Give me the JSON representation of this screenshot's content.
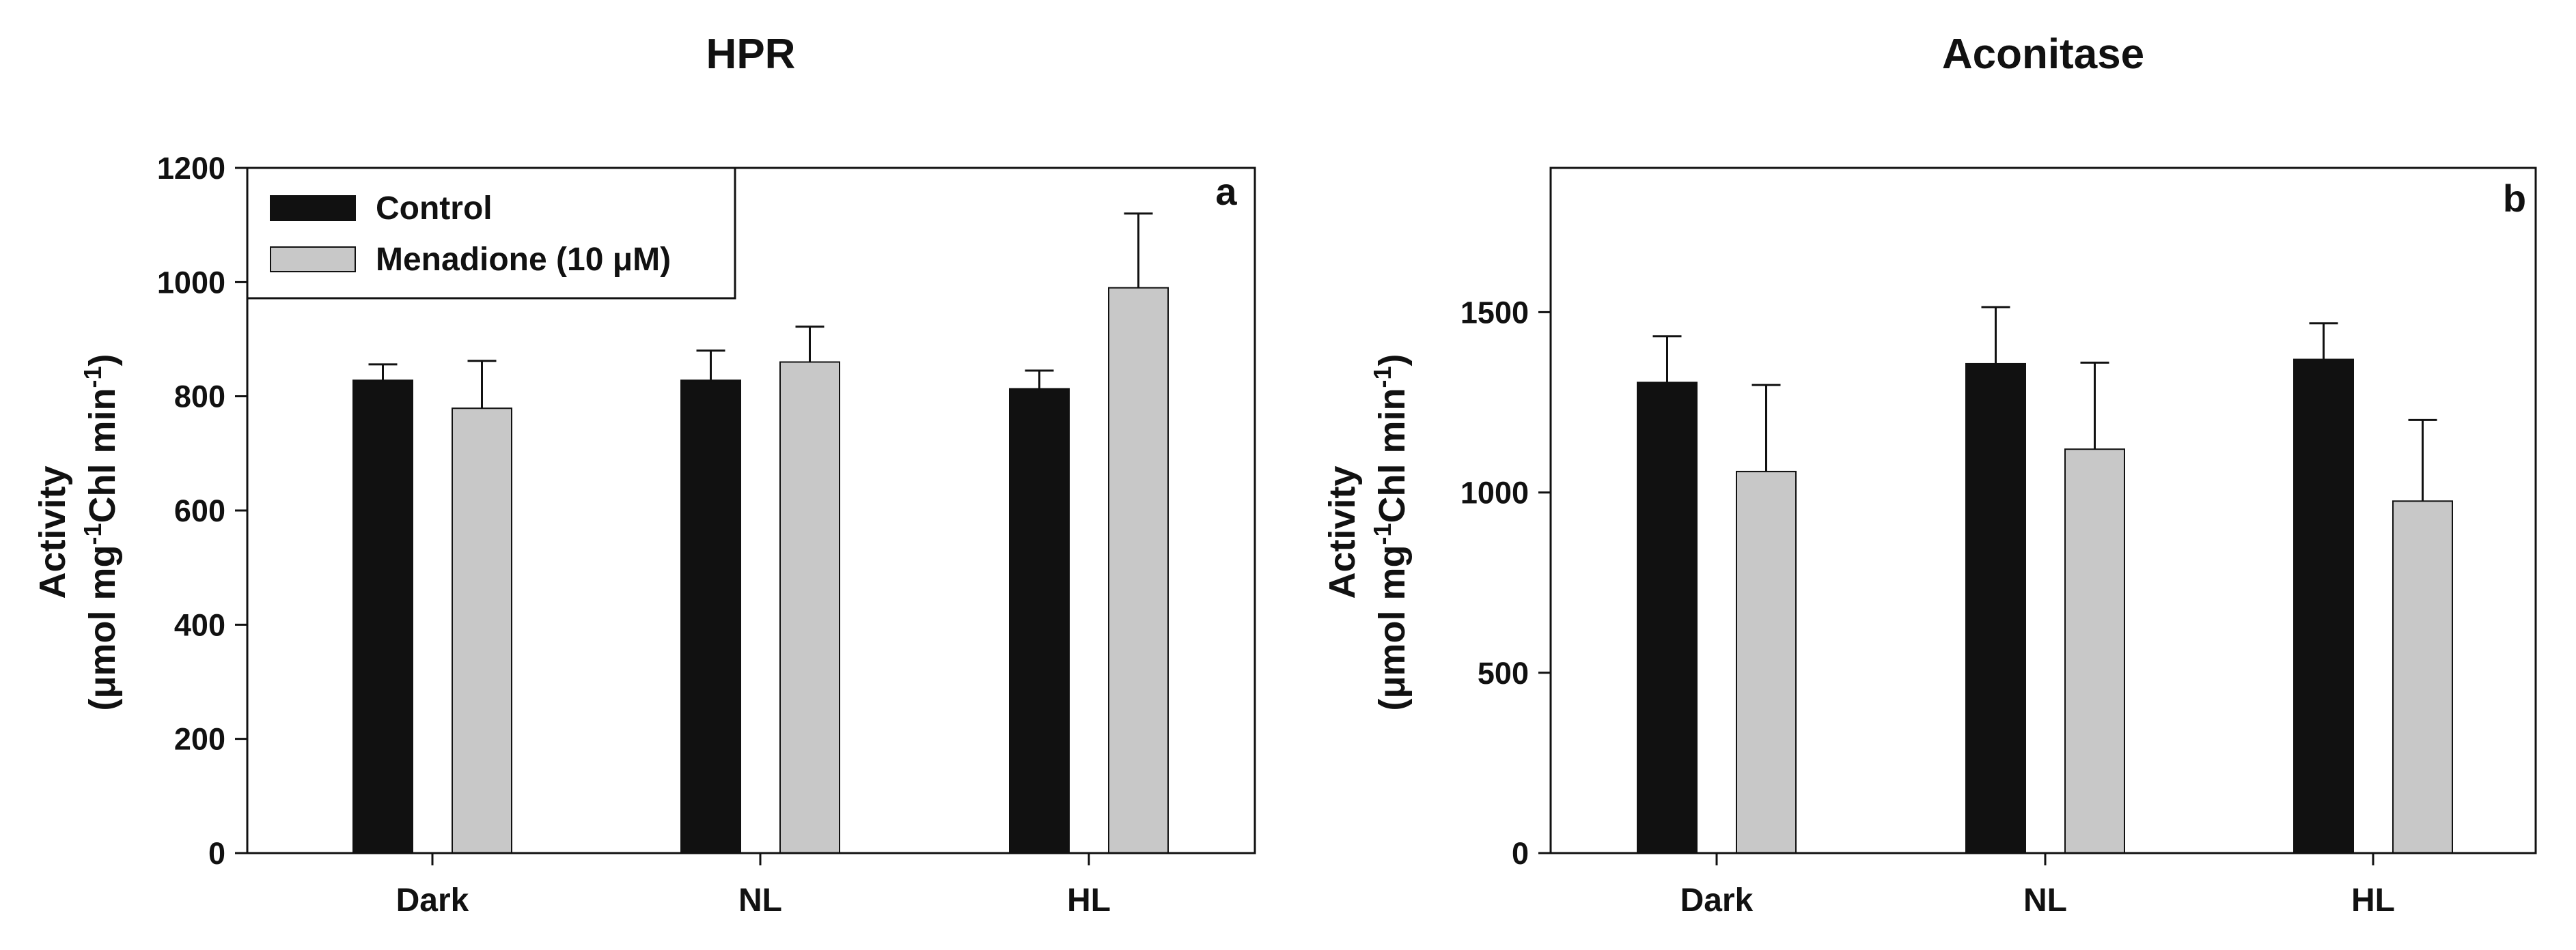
{
  "chart_data": [
    {
      "type": "bar",
      "panel_label": "a",
      "title": "HPR",
      "ylabel_line1": "Activity",
      "ylabel_line2_prefix": "(μmol mg",
      "ylabel_exp1": "-1",
      "ylabel_line2_mid": "Chl min",
      "ylabel_exp2": "-1",
      "ylabel_line2_suffix": ")",
      "xlabel": "",
      "categories": [
        "Dark",
        "NL",
        "HL"
      ],
      "ylim": [
        0,
        1200
      ],
      "yticks": [
        0,
        200,
        400,
        600,
        800,
        1000,
        1200
      ],
      "grid": false,
      "legend_position": "top-left",
      "series": [
        {
          "name": "Control",
          "color": "#111111",
          "values": [
            828,
            828,
            813
          ],
          "errors": [
            28,
            52,
            32
          ]
        },
        {
          "name": "Menadione (10 μM)",
          "color": "#c8c8c8",
          "values": [
            779,
            860,
            990
          ],
          "errors": [
            83,
            62,
            130
          ]
        }
      ]
    },
    {
      "type": "bar",
      "panel_label": "b",
      "title": "Aconitase",
      "ylabel_line1": "Activity",
      "ylabel_line2_prefix": "(μmol mg",
      "ylabel_exp1": "-1",
      "ylabel_line2_mid": "Chl min",
      "ylabel_exp2": "-1",
      "ylabel_line2_suffix": ")",
      "xlabel": "",
      "categories": [
        "Dark",
        "NL",
        "HL"
      ],
      "ylim": [
        0,
        1900
      ],
      "yticks": [
        0,
        500,
        1000,
        1500
      ],
      "grid": false,
      "legend_position": "none",
      "series": [
        {
          "name": "Control",
          "color": "#111111",
          "values": [
            1305,
            1357,
            1369
          ],
          "errors": [
            128,
            157,
            100
          ]
        },
        {
          "name": "Menadione (10 μM)",
          "color": "#c8c8c8",
          "values": [
            1058,
            1120,
            976
          ],
          "errors": [
            240,
            240,
            225
          ]
        }
      ]
    }
  ]
}
